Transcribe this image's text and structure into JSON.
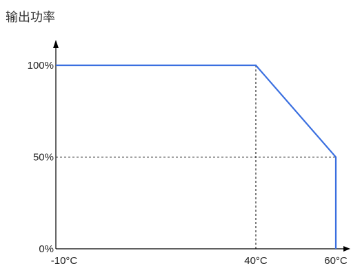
{
  "chart_data": {
    "type": "line",
    "title": "输出功率",
    "xlabel": "",
    "ylabel": "",
    "x_ticks": [
      {
        "value": -10,
        "label": "-10°C"
      },
      {
        "value": 40,
        "label": "40°C"
      },
      {
        "value": 60,
        "label": "60°C"
      }
    ],
    "y_ticks": [
      {
        "value": 0,
        "label": "0%"
      },
      {
        "value": 50,
        "label": "50%"
      },
      {
        "value": 100,
        "label": "100%"
      }
    ],
    "series": [
      {
        "points": [
          {
            "x": -10,
            "y": 100
          },
          {
            "x": 40,
            "y": 100
          },
          {
            "x": 60,
            "y": 50
          },
          {
            "x": 60,
            "y": 0
          }
        ]
      }
    ],
    "reference_lines": [
      {
        "kind": "vertical",
        "x": 40,
        "from_y": 0,
        "to_y": 100
      },
      {
        "kind": "horizontal",
        "y": 50,
        "from_x": -10,
        "to_x": 60
      }
    ],
    "grid": false,
    "colors": {
      "series": "#3a6fe0",
      "axis": "#000000",
      "reference": "#000000"
    }
  }
}
